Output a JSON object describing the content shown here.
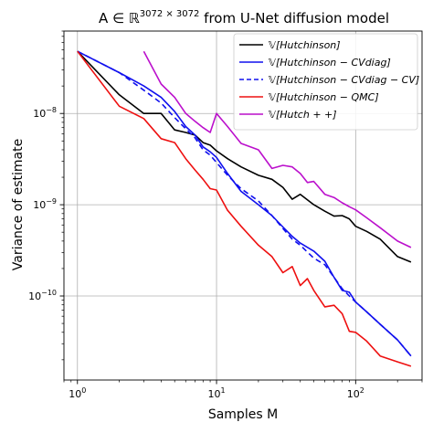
{
  "chart_data": {
    "type": "line",
    "title_prefix": "A ∈ ",
    "title_sup": "3072 × 3072",
    "title_suffix": " from U-Net diffusion model",
    "title_field": "ℝ",
    "xlabel": "Samples M",
    "ylabel": "Variance of estimate",
    "xscale": "log",
    "yscale": "log",
    "xlim": [
      0.8,
      300
    ],
    "ylim": [
      1.2e-11,
      8e-08
    ],
    "grid": true,
    "legend_position": "top-right",
    "x_ticks": [
      {
        "value": 1,
        "base": "10",
        "exp": "0"
      },
      {
        "value": 10,
        "base": "10",
        "exp": "1"
      },
      {
        "value": 100,
        "base": "10",
        "exp": "2"
      }
    ],
    "y_ticks": [
      {
        "value": 1e-10,
        "base": "10",
        "exp": "−10"
      },
      {
        "value": 1e-09,
        "base": "10",
        "exp": "−9"
      },
      {
        "value": 1e-08,
        "base": "10",
        "exp": "−8"
      }
    ],
    "series": [
      {
        "name": "𝕍[Hutchinson]",
        "color": "#000000",
        "dash": "solid",
        "x": [
          1,
          2,
          3,
          4,
          5,
          6,
          7,
          8,
          9,
          10,
          12,
          15,
          20,
          25,
          30,
          35,
          40,
          50,
          60,
          70,
          80,
          90,
          100,
          120,
          150,
          200,
          250
        ],
        "y": [
          4.8e-08,
          1.6e-08,
          1e-08,
          1e-08,
          6.6e-09,
          6.2e-09,
          5.8e-09,
          4.8e-09,
          4.5e-09,
          3.9e-09,
          3.2e-09,
          2.6e-09,
          2.1e-09,
          1.9e-09,
          1.55e-09,
          1.15e-09,
          1.3e-09,
          1e-09,
          8.5e-10,
          7.5e-10,
          7.6e-10,
          7e-10,
          5.8e-10,
          5.1e-10,
          4.2e-10,
          2.7e-10,
          2.35e-10
        ]
      },
      {
        "name": "𝕍[Hutchinson − CVdiag]",
        "color": "#1010ee",
        "dash": "solid",
        "x": [
          1,
          2,
          3,
          4,
          5,
          6,
          7,
          8,
          9,
          10,
          12,
          15,
          20,
          25,
          30,
          35,
          40,
          50,
          60,
          70,
          80,
          90,
          100,
          120,
          150,
          200,
          250
        ],
        "y": [
          4.8e-08,
          2.8e-08,
          2e-08,
          1.5e-08,
          1.05e-08,
          7.2e-09,
          5.8e-09,
          4.3e-09,
          3.8e-09,
          3.3e-09,
          2.2e-09,
          1.4e-09,
          1e-09,
          7.6e-10,
          5.7e-10,
          4.5e-10,
          3.8e-10,
          3.1e-10,
          2.4e-10,
          1.6e-10,
          1.15e-10,
          1.1e-10,
          8.6e-11,
          6.7e-11,
          4.9e-11,
          3.3e-11,
          2.2e-11
        ]
      },
      {
        "name": "𝕍[Hutchinson − CVdiag − CV]",
        "color": "#1010ee",
        "dash": "dashed",
        "x": [
          1,
          2,
          3,
          4,
          5,
          6,
          7,
          8,
          9,
          10,
          12,
          15,
          20,
          25,
          30,
          35,
          40,
          50,
          60,
          70,
          80,
          90,
          100,
          120,
          150,
          200,
          250
        ],
        "y": [
          4.8e-08,
          2.8e-08,
          1.8e-08,
          1.3e-08,
          9e-09,
          6.8e-09,
          5.4e-09,
          4e-09,
          3.5e-09,
          2.9e-09,
          2.1e-09,
          1.5e-09,
          1.1e-09,
          7.6e-10,
          5.5e-10,
          4.2e-10,
          3.6e-10,
          2.6e-10,
          2.2e-10,
          1.6e-10,
          1.2e-10,
          1e-10,
          8.6e-11,
          6.7e-11,
          4.9e-11,
          3.3e-11,
          2.2e-11
        ]
      },
      {
        "name": "𝕍[Hutchinson − QMC]",
        "color": "#ee1010",
        "dash": "solid",
        "x": [
          1,
          2,
          3,
          4,
          5,
          6,
          7,
          8,
          9,
          10,
          12,
          15,
          20,
          25,
          30,
          35,
          40,
          45,
          50,
          60,
          70,
          80,
          90,
          100,
          120,
          150,
          200,
          250
        ],
        "y": [
          4.8e-08,
          1.2e-08,
          8.8e-09,
          5.3e-09,
          4.8e-09,
          3.2e-09,
          2.4e-09,
          1.9e-09,
          1.5e-09,
          1.45e-09,
          8.7e-10,
          5.8e-10,
          3.6e-10,
          2.7e-10,
          1.8e-10,
          2.1e-10,
          1.3e-10,
          1.55e-10,
          1.15e-10,
          7.6e-11,
          7.9e-11,
          6.4e-11,
          4.1e-11,
          4e-11,
          3.2e-11,
          2.2e-11,
          1.9e-11,
          1.7e-11
        ]
      },
      {
        "name": "𝕍[Hutch + +]",
        "color": "#bb10cc",
        "dash": "solid",
        "x": [
          3,
          4,
          5,
          6,
          7,
          8,
          9,
          10,
          12,
          15,
          20,
          25,
          30,
          35,
          40,
          45,
          50,
          60,
          70,
          80,
          90,
          100,
          120,
          150,
          200,
          250
        ],
        "y": [
          4.8e-08,
          2.1e-08,
          1.5e-08,
          1e-08,
          8.2e-09,
          7e-09,
          6.2e-09,
          1e-08,
          7.2e-09,
          4.7e-09,
          4e-09,
          2.5e-09,
          2.7e-09,
          2.6e-09,
          2.2e-09,
          1.75e-09,
          1.8e-09,
          1.3e-09,
          1.2e-09,
          1.05e-09,
          9.5e-10,
          8.8e-10,
          7.2e-10,
          5.6e-10,
          4e-10,
          3.4e-10
        ]
      }
    ]
  }
}
